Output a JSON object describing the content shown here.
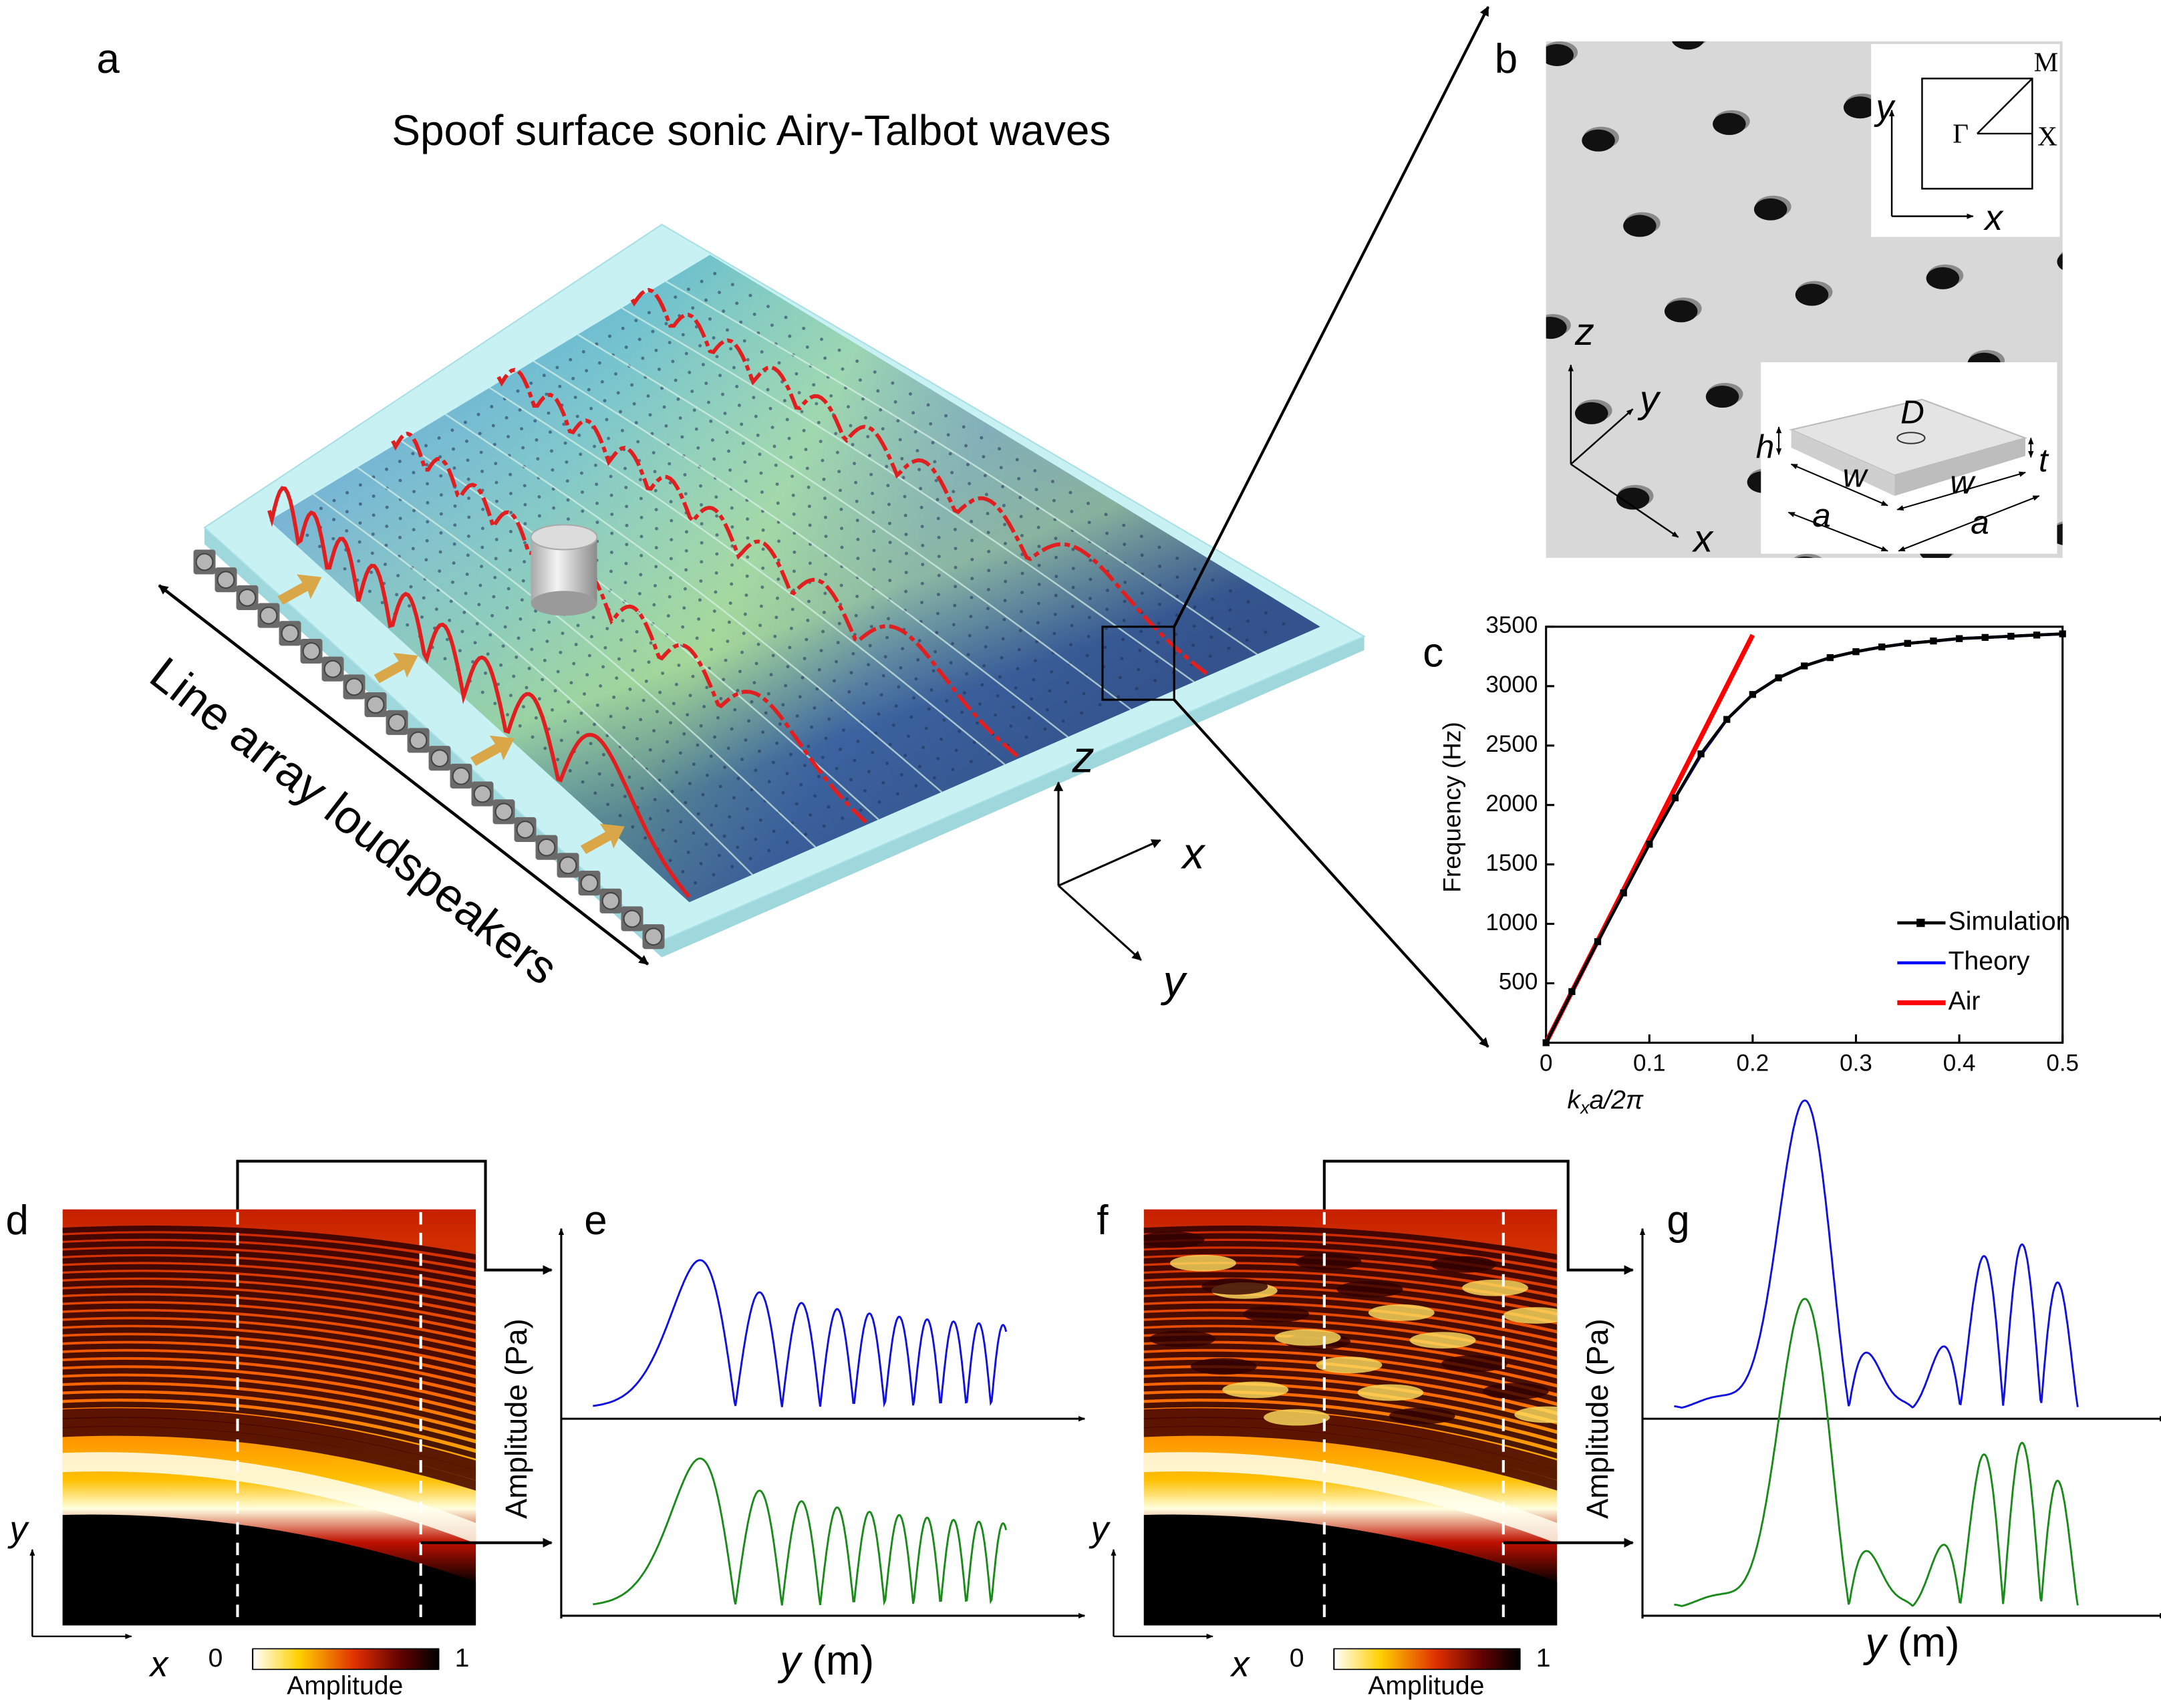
{
  "panel_labels": [
    "a",
    "b",
    "c",
    "d",
    "e",
    "f",
    "g"
  ],
  "panel_a": {
    "title": "Spoof surface sonic Airy-Talbot waves",
    "array_label": "Line array loudspeakers",
    "axes": [
      "z",
      "x",
      "y"
    ]
  },
  "panel_b": {
    "bz_axes": [
      "y",
      "x"
    ],
    "bz_points": [
      "M",
      "Γ",
      "X"
    ],
    "axes": [
      "z",
      "y",
      "x"
    ],
    "cell_labels": [
      "D",
      "h",
      "w",
      "w",
      "t",
      "a",
      "a"
    ]
  },
  "chart_data": {
    "type": "line",
    "ylabel": "Frequency (Hz)",
    "xlabel": {
      "main": "k",
      "sub": "x",
      "rest": "a/2π"
    },
    "xlim": [
      0,
      0.5
    ],
    "ylim": [
      0,
      3500
    ],
    "xticks": [
      0,
      0.1,
      0.2,
      0.3,
      0.4,
      0.5
    ],
    "yticks": [
      500,
      1000,
      1500,
      2000,
      2500,
      3000,
      3500
    ],
    "legend": "lower right",
    "series": [
      {
        "name": "Simulation",
        "color": "#000000",
        "marker": "square",
        "x": [
          0,
          0.025,
          0.05,
          0.075,
          0.1,
          0.125,
          0.15,
          0.175,
          0.2,
          0.225,
          0.25,
          0.275,
          0.3,
          0.325,
          0.35,
          0.375,
          0.4,
          0.425,
          0.45,
          0.475,
          0.5
        ],
        "values": [
          0,
          430,
          850,
          1260,
          1670,
          2060,
          2430,
          2720,
          2930,
          3070,
          3170,
          3240,
          3290,
          3330,
          3360,
          3380,
          3400,
          3410,
          3420,
          3430,
          3440
        ]
      },
      {
        "name": "Theory",
        "color": "#0000ff",
        "x": [
          0,
          0.025,
          0.05,
          0.075,
          0.1,
          0.125,
          0.15,
          0.175,
          0.2,
          0.225,
          0.25,
          0.275,
          0.3,
          0.325,
          0.35,
          0.375,
          0.4,
          0.425,
          0.45,
          0.475,
          0.5
        ],
        "values": [
          0,
          430,
          850,
          1260,
          1670,
          2060,
          2420,
          2720,
          2930,
          3070,
          3170,
          3240,
          3290,
          3330,
          3360,
          3380,
          3400,
          3410,
          3420,
          3430,
          3440
        ]
      },
      {
        "name": "Air",
        "color": "#ff0000",
        "x": [
          0,
          0.2
        ],
        "values": [
          0,
          3430
        ]
      }
    ]
  },
  "panel_d": {
    "axes": [
      "y",
      "x"
    ],
    "colorbar": {
      "ticks": [
        0,
        1
      ],
      "label": "Amplitude"
    }
  },
  "panel_e": {
    "ylabel": "Amplitude (Pa)",
    "xlabel": {
      "var": "y",
      "unit": "(m)"
    }
  },
  "panel_f": {
    "axes": [
      "y",
      "x"
    ],
    "colorbar": {
      "ticks": [
        0,
        1
      ],
      "label": "Amplitude"
    }
  },
  "panel_g": {
    "ylabel": "Amplitude (Pa)",
    "xlabel": {
      "var": "y",
      "unit": "(m)"
    }
  }
}
